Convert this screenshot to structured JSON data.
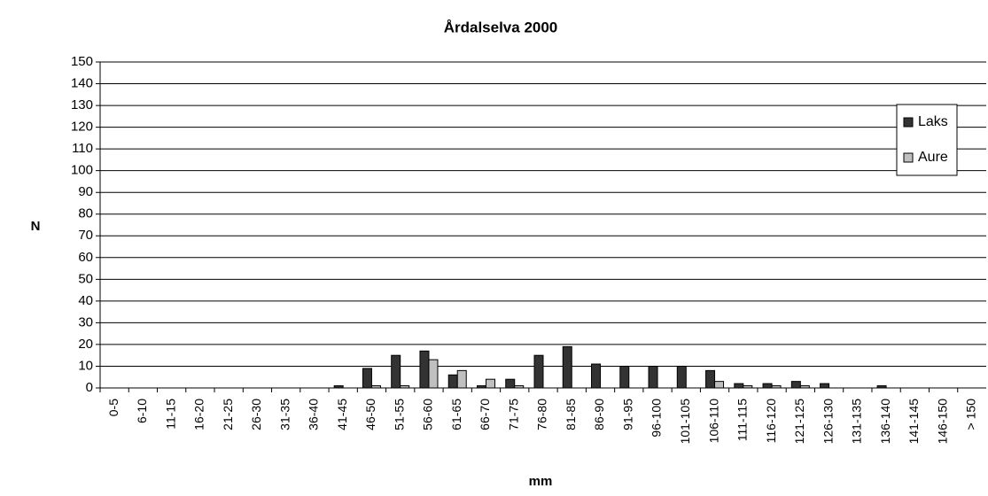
{
  "chart_data": {
    "type": "bar",
    "title": "Årdalselva 2000",
    "y_label": "N",
    "x_label": "mm",
    "categories": [
      "0-5",
      "6-10",
      "11-15",
      "16-20",
      "21-25",
      "26-30",
      "31-35",
      "36-40",
      "41-45",
      "46-50",
      "51-55",
      "56-60",
      "61-65",
      "66-70",
      "71-75",
      "76-80",
      "81-85",
      "86-90",
      "91-95",
      "96-100",
      "101-105",
      "106-110",
      "111-115",
      "116-120",
      "121-125",
      "126-130",
      "131-135",
      "136-140",
      "141-145",
      "146-150",
      "> 150"
    ],
    "series": [
      {
        "name": "Laks",
        "color": "#333333",
        "values": [
          0,
          0,
          0,
          0,
          0,
          0,
          0,
          0,
          1,
          9,
          15,
          17,
          6,
          1,
          4,
          15,
          19,
          11,
          10,
          10,
          10,
          8,
          2,
          2,
          3,
          2,
          0,
          1,
          0,
          0,
          0
        ]
      },
      {
        "name": "Aure",
        "color": "#c0c0c0",
        "values": [
          0,
          0,
          0,
          0,
          0,
          0,
          0,
          0,
          0,
          1,
          1,
          13,
          8,
          4,
          1,
          0,
          0,
          0,
          0,
          0,
          0,
          3,
          1,
          1,
          1,
          0,
          0,
          0,
          0,
          0,
          0
        ]
      }
    ],
    "ylim": [
      0,
      150
    ],
    "yticks": [
      0,
      10,
      20,
      30,
      40,
      50,
      60,
      70,
      80,
      90,
      100,
      110,
      120,
      130,
      140,
      150
    ],
    "grid": true,
    "legend": "top-right"
  }
}
